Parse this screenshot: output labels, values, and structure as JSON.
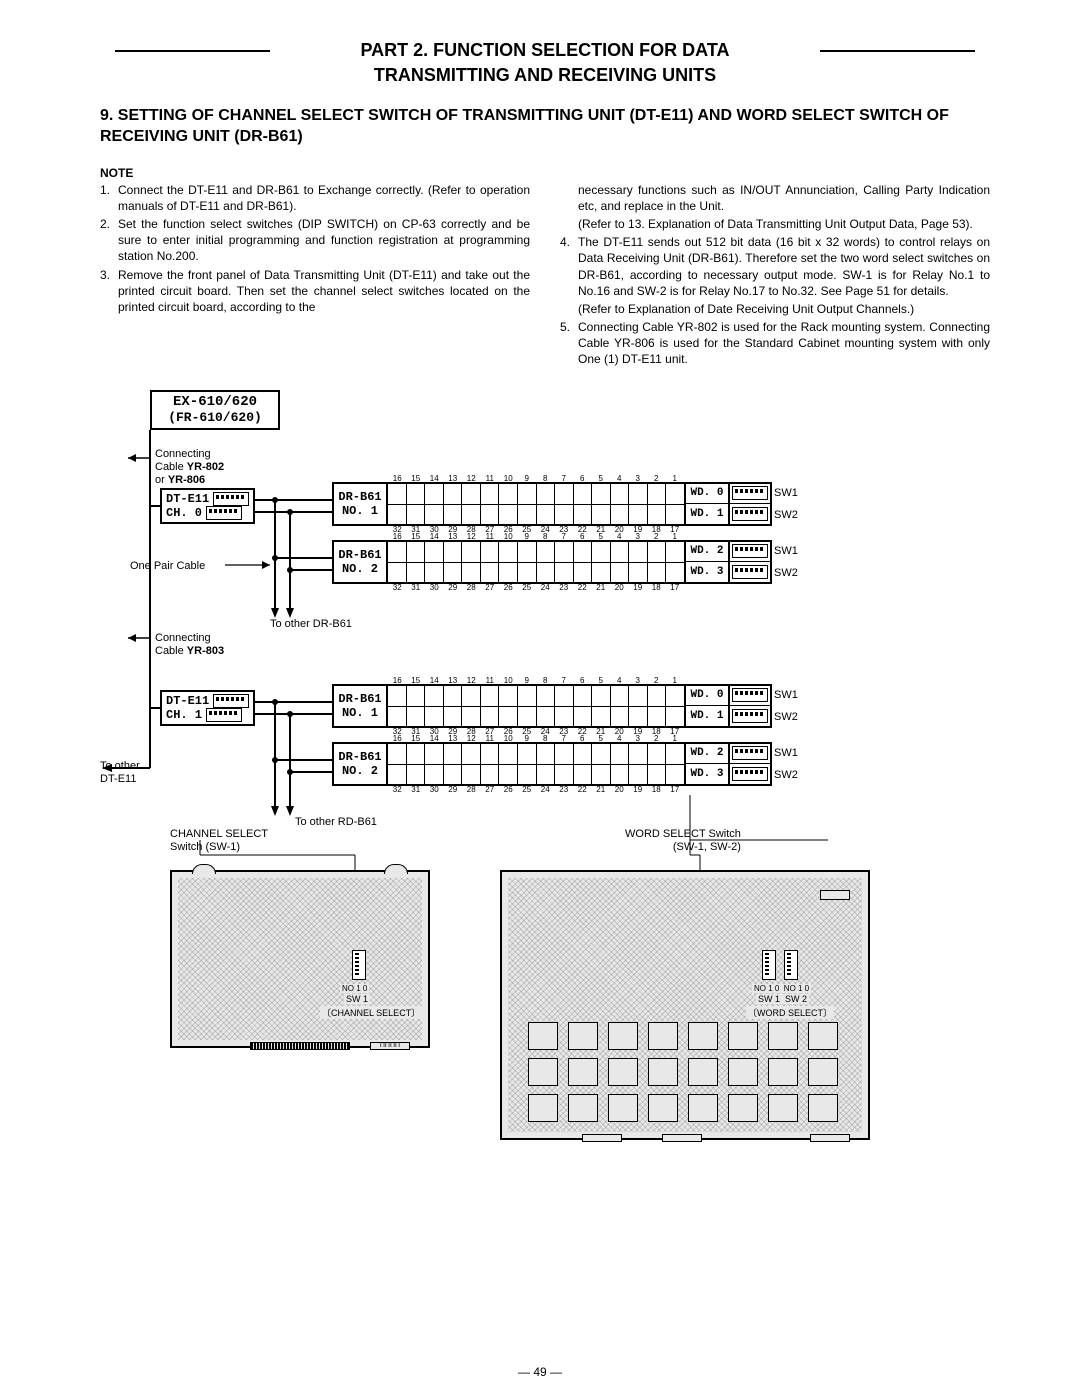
{
  "title_line1": "PART 2. FUNCTION SELECTION FOR DATA",
  "title_line2": "TRANSMITTING AND RECEIVING UNITS",
  "section": "9. SETTING OF CHANNEL SELECT SWITCH OF TRANSMITTING UNIT (DT-E11) AND WORD SELECT SWITCH OF RECEIVING UNIT (DR-B61)",
  "note_label": "NOTE",
  "notes_left": [
    {
      "n": "1.",
      "t": "Connect the DT-E11 and DR-B61 to Exchange correctly. (Refer to operation manuals of DT-E11 and DR-B61)."
    },
    {
      "n": "2.",
      "t": "Set the function select switches (DIP SWITCH) on CP-63 correctly and be sure to enter initial programming and function registration at programming station No.200."
    },
    {
      "n": "3.",
      "t": "Remove the front panel of Data Transmitting Unit (DT-E11) and take out the printed circuit board. Then set the channel select switches located on the printed circuit board, according to the"
    }
  ],
  "notes_right_cont1": "necessary functions such as IN/OUT Annunciation, Calling Party Indication etc, and replace in the Unit.",
  "notes_right_cont2": "(Refer to 13. Explanation of Data Transmitting Unit Output Data, Page 53).",
  "notes_right": [
    {
      "n": "4.",
      "t": "The DT-E11 sends out 512 bit data (16 bit x 32 words) to control relays on Data Receiving Unit (DR-B61). Therefore set the two word select switches on DR-B61, according to necessary output mode. SW-1 is for Relay No.1 to No.16 and SW-2 is for Relay No.17 to No.32. See Page 51 for details."
    }
  ],
  "notes_right_cont3": "(Refer to Explanation of Date Receiving Unit Output Channels.)",
  "notes_right5": {
    "n": "5.",
    "t": "Connecting Cable YR-802 is used for the Rack mounting system. Connecting Cable YR-806 is used for the Standard Cabinet mounting system with only One (1) DT-E11 unit."
  },
  "ex_label_l1": "EX-610/620",
  "ex_label_l2": "(FR-610/620)",
  "conn_cable_1a": "Connecting",
  "conn_cable_1b": "Cable YR-802",
  "conn_cable_1c": "or YR-806",
  "dte11": "DT-E11",
  "ch0": "CH. 0",
  "ch1": "CH. 1",
  "drb61": "DR-B61",
  "no1": "NO. 1",
  "no2": "NO. 2",
  "wd0": "WD. 0",
  "wd1": "WD. 1",
  "wd2": "WD. 2",
  "wd3": "WD. 3",
  "sw1": "SW1",
  "sw2": "SW2",
  "one_pair": "One Pair Cable",
  "to_other_dr": "To other DR-B61",
  "to_other_rd": "To other RD-B61",
  "conn_cable_2a": "Connecting",
  "conn_cable_2b": "Cable YR-803",
  "to_other_dte": "To other",
  "to_other_dte2": "DT-E11",
  "chan_sel1": "CHANNEL SELECT",
  "chan_sel2": "Switch (SW-1)",
  "word_sel1": "WORD SELECT Switch",
  "word_sel2": "(SW-1, SW-2)",
  "pcb_chan": "〔CHANNEL SELECT〕",
  "pcb_word": "〔WORD SELECT〕",
  "pcb_sw1": "SW 1",
  "pcb_sw2": "SW 2",
  "page": "— 49 —",
  "nums_top": [
    "16",
    "15",
    "14",
    "13",
    "12",
    "11",
    "10",
    "9",
    "8",
    "7",
    "6",
    "5",
    "4",
    "3",
    "2",
    "1"
  ],
  "nums_bot": [
    "32",
    "31",
    "30",
    "29",
    "28",
    "27",
    "26",
    "25",
    "24",
    "23",
    "22",
    "21",
    "20",
    "19",
    "18",
    "17"
  ]
}
